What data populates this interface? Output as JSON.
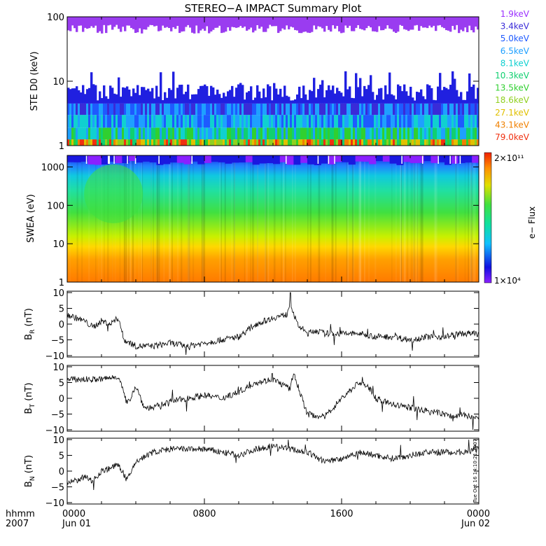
{
  "title": "STEREO−A IMPACT Summary Plot",
  "colors": {
    "background": "#ffffff",
    "frame": "#000000",
    "trace": "#000000",
    "ste_top": "#9a3cf0",
    "ste_low": "#2020e0"
  },
  "chart_data": [
    {
      "type": "heatmap",
      "panel": "ste",
      "ylabel": "STE D0 (keV)",
      "yscale": "log",
      "ylim": [
        1,
        100
      ],
      "yticks": [
        "1",
        "10",
        "100"
      ],
      "legend_placement": "right",
      "energy_channels": [
        {
          "label": "1.9keV",
          "color": "#9b30ff"
        },
        {
          "label": "3.4keV",
          "color": "#3a2bd8"
        },
        {
          "label": "5.0keV",
          "color": "#1e5aff"
        },
        {
          "label": "6.5keV",
          "color": "#1ea0ff"
        },
        {
          "label": "8.1keV",
          "color": "#10d0d0"
        },
        {
          "label": "10.3keV",
          "color": "#10d070"
        },
        {
          "label": "13.5keV",
          "color": "#30d030"
        },
        {
          "label": "18.6keV",
          "color": "#90d020"
        },
        {
          "label": "27.1keV",
          "color": "#e0c000"
        },
        {
          "label": "43.1keV",
          "color": "#f08000"
        },
        {
          "label": "79.0keV",
          "color": "#f03010"
        }
      ]
    },
    {
      "type": "heatmap",
      "panel": "swea",
      "ylabel": "SWEA (eV)",
      "yscale": "log",
      "ylim": [
        1,
        2000
      ],
      "yticks": [
        "1",
        "10",
        "100",
        "1000"
      ],
      "colorbar": {
        "label": "e− Flux",
        "max_label": "2×10¹¹",
        "min_label": "1×10⁴",
        "scale": "log"
      }
    },
    {
      "type": "line",
      "panel": "br",
      "ylabel_main": "B",
      "ylabel_sub": "R",
      "ylabel_unit": " (nT)",
      "ylim": [
        -10,
        10
      ],
      "yticks": [
        "10",
        "5",
        "0",
        "−5",
        "−10"
      ],
      "x": [
        0,
        0.5,
        1,
        1.5,
        2,
        2.5,
        3,
        3.3,
        3.7,
        4,
        5,
        6,
        7,
        8,
        9,
        10,
        11,
        12,
        12.8,
        13,
        13.4,
        14,
        14.5,
        15,
        16,
        17,
        18,
        19,
        20,
        21,
        22,
        23,
        24
      ],
      "y": [
        3,
        2,
        1,
        -1,
        1,
        0,
        2,
        -5,
        -6,
        -7,
        -7,
        -6,
        -7,
        -6,
        -5,
        -4,
        0,
        2,
        3,
        7,
        0,
        -3,
        -2,
        -3,
        -3,
        -3,
        -4,
        -4,
        -5,
        -4,
        -4,
        -3,
        -3
      ]
    },
    {
      "type": "line",
      "panel": "bt",
      "ylabel_main": "B",
      "ylabel_sub": "T",
      "ylabel_unit": " (nT)",
      "ylim": [
        -10,
        10
      ],
      "yticks": [
        "10",
        "5",
        "0",
        "−5",
        "−10"
      ],
      "x": [
        0,
        1,
        2,
        3,
        3.5,
        4,
        4.5,
        5,
        6,
        7,
        8,
        9,
        10,
        11,
        12,
        13,
        13.2,
        14,
        15,
        16,
        17,
        17.5,
        18,
        19,
        20,
        21,
        22,
        22.5,
        23,
        23.5,
        24
      ],
      "y": [
        6,
        6,
        6,
        7,
        -2,
        4,
        -3,
        -3,
        -1,
        0,
        1,
        0,
        2,
        5,
        6,
        3,
        8,
        -5,
        -6,
        0,
        5,
        4,
        0,
        -2,
        -3,
        -4,
        -5,
        -6,
        -5,
        -6,
        -6
      ]
    },
    {
      "type": "line",
      "panel": "bn",
      "ylabel_main": "B",
      "ylabel_sub": "N",
      "ylabel_unit": " (nT)",
      "ylim": [
        -10,
        10
      ],
      "yticks": [
        "10",
        "5",
        "0",
        "−5",
        "−10"
      ],
      "x": [
        0,
        1,
        1.5,
        2,
        2.5,
        3,
        3.5,
        4,
        5,
        6,
        7,
        8,
        9,
        10,
        11,
        12,
        13,
        14,
        15,
        16,
        17,
        18,
        19,
        20,
        21,
        22,
        23,
        24
      ],
      "y": [
        -4,
        -2,
        -3,
        0,
        1,
        2,
        -3,
        3,
        6,
        7,
        7,
        7,
        6,
        5,
        7,
        8,
        7,
        6,
        3,
        4,
        6,
        5,
        4,
        5,
        6,
        6,
        6,
        7
      ]
    }
  ],
  "x_axis": {
    "row1_prefix": "hhmm",
    "row2_prefix": "2007",
    "ticks": [
      {
        "hour": 0,
        "label": "0000",
        "date": "Jun 01"
      },
      {
        "hour": 8,
        "label": "0800",
        "date": ""
      },
      {
        "hour": 16,
        "label": "1600",
        "date": ""
      },
      {
        "hour": 24,
        "label": "0000",
        "date": "Jun 02"
      }
    ],
    "range_hours": [
      0,
      24
    ]
  },
  "timestamp": "Tue Oct 16 14:10:21 2007"
}
